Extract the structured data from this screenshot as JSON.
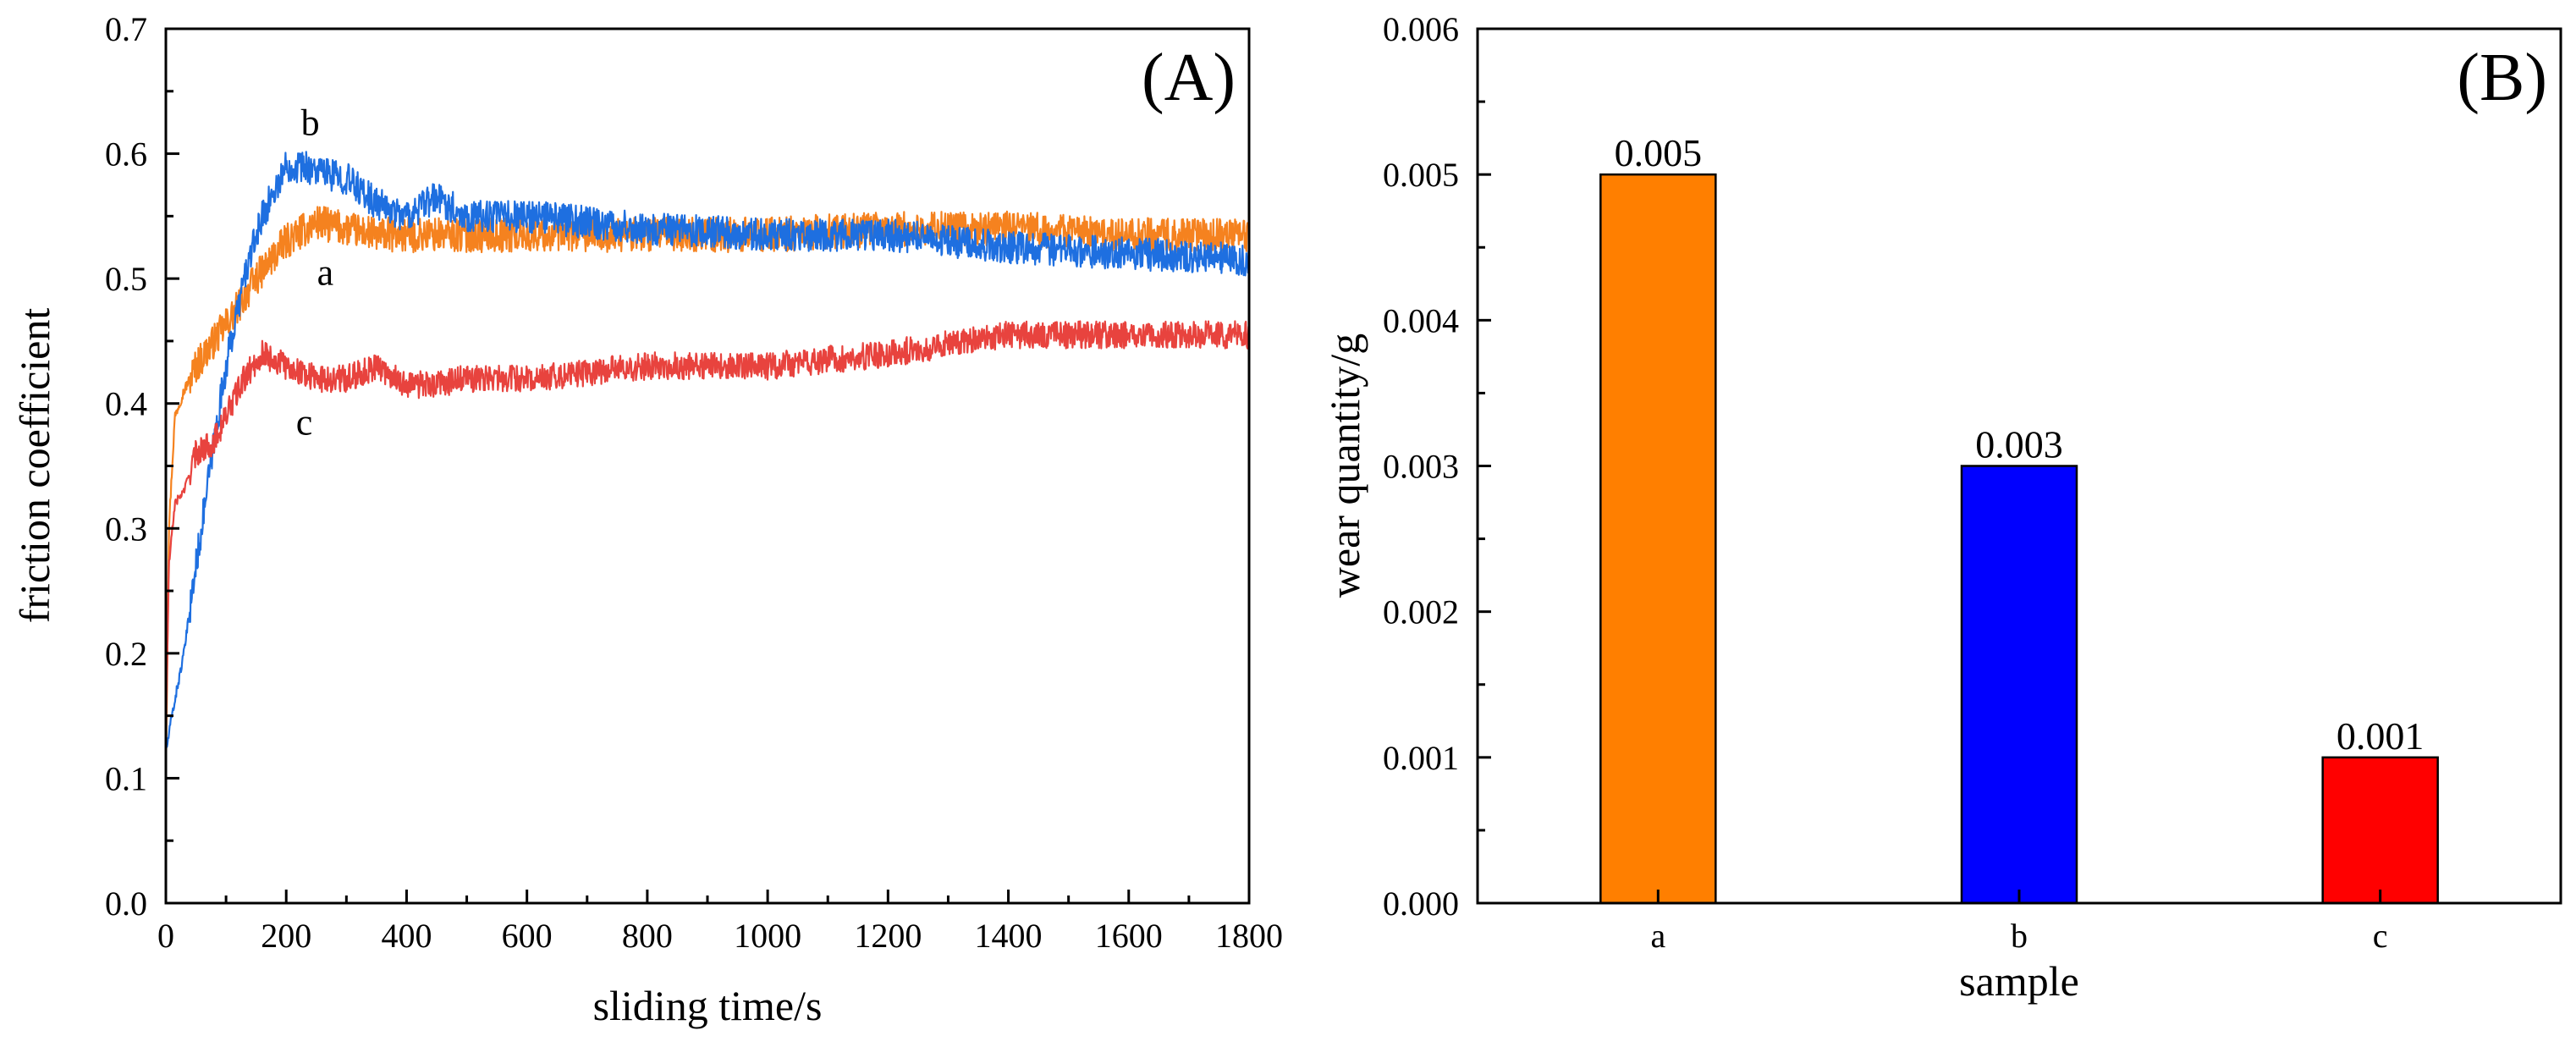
{
  "chart_data": [
    {
      "type": "line",
      "panel_label": "(A)",
      "xlabel": "sliding time/s",
      "ylabel": "friction coefficient",
      "xlim": [
        0,
        1800
      ],
      "ylim": [
        0.0,
        0.7
      ],
      "xticks": [
        "0",
        "200",
        "400",
        "600",
        "800",
        "1000",
        "1200",
        "1400",
        "1600",
        "1800"
      ],
      "yticks": [
        "0.0",
        "0.1",
        "0.2",
        "0.3",
        "0.4",
        "0.5",
        "0.6",
        "0.7"
      ],
      "grid": false,
      "series": [
        {
          "name": "a",
          "color": "#f5821f",
          "noise": 0.014,
          "x": [
            0,
            5,
            15,
            30,
            50,
            80,
            110,
            150,
            200,
            250,
            300,
            350,
            400,
            500,
            600,
            800,
            1000,
            1200,
            1400,
            1600,
            1800
          ],
          "y": [
            0.1,
            0.3,
            0.39,
            0.41,
            0.43,
            0.45,
            0.47,
            0.5,
            0.53,
            0.545,
            0.54,
            0.535,
            0.535,
            0.535,
            0.535,
            0.535,
            0.535,
            0.54,
            0.54,
            0.535,
            0.535
          ]
        },
        {
          "name": "b",
          "color": "#1e6fe0",
          "noise": 0.013,
          "x": [
            0,
            10,
            30,
            50,
            80,
            100,
            130,
            160,
            200,
            230,
            260,
            300,
            350,
            400,
            450,
            500,
            600,
            800,
            1000,
            1200,
            1400,
            1600,
            1800
          ],
          "y": [
            0.12,
            0.15,
            0.2,
            0.27,
            0.37,
            0.43,
            0.5,
            0.55,
            0.59,
            0.59,
            0.585,
            0.58,
            0.56,
            0.55,
            0.565,
            0.55,
            0.55,
            0.54,
            0.535,
            0.535,
            0.525,
            0.52,
            0.515
          ]
        },
        {
          "name": "c",
          "color": "#e8433e",
          "noise": 0.011,
          "x": [
            0,
            5,
            15,
            30,
            50,
            80,
            100,
            130,
            160,
            200,
            250,
            300,
            350,
            400,
            450,
            500,
            600,
            800,
            1000,
            1200,
            1400,
            1600,
            1800
          ],
          "y": [
            0.13,
            0.27,
            0.32,
            0.33,
            0.36,
            0.37,
            0.39,
            0.42,
            0.44,
            0.43,
            0.42,
            0.42,
            0.43,
            0.415,
            0.415,
            0.42,
            0.42,
            0.43,
            0.43,
            0.44,
            0.455,
            0.455,
            0.455
          ]
        }
      ],
      "curve_labels": [
        {
          "text": "b",
          "x": 240,
          "y": 0.615
        },
        {
          "text": "a",
          "x": 265,
          "y": 0.495
        },
        {
          "text": "c",
          "x": 230,
          "y": 0.375
        }
      ]
    },
    {
      "type": "bar",
      "panel_label": "(B)",
      "xlabel": "sample",
      "ylabel": "wear quantity/g",
      "categories": [
        "a",
        "b",
        "c"
      ],
      "values": [
        0.005,
        0.003,
        0.001
      ],
      "value_labels": [
        "0.005",
        "0.003",
        "0.001"
      ],
      "colors": [
        "#ff7f00",
        "#0000ff",
        "#ff0000"
      ],
      "ylim": [
        0.0,
        0.006
      ],
      "yticks": [
        "0.000",
        "0.001",
        "0.002",
        "0.003",
        "0.004",
        "0.005",
        "0.006"
      ],
      "grid": false
    }
  ]
}
